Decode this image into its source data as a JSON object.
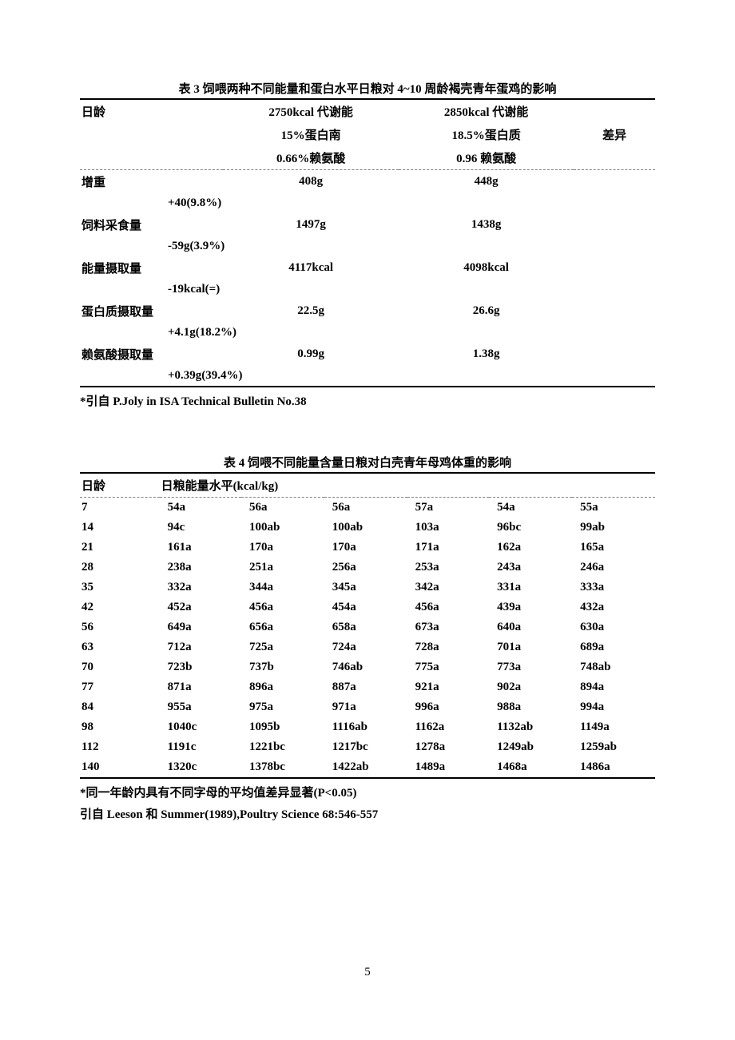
{
  "table3": {
    "caption": "表 3  饲喂两种不同能量和蛋白水平日粮对 4~10 周龄褐壳青年蛋鸡的影响",
    "hdr_age": "日龄",
    "hdr_diff": "差异",
    "diet1_l1": "2750kcal 代谢能",
    "diet1_l2": "15%蛋白南",
    "diet1_l3": "0.66%赖氨酸",
    "diet2_l1": "2850kcal 代谢能",
    "diet2_l2": "18.5%蛋白质",
    "diet2_l3": "0.96 赖氨酸",
    "rows": [
      {
        "label": "增重",
        "v1": "408g",
        "v2": "448g",
        "diff": "+40(9.8%)"
      },
      {
        "label": "饲料采食量",
        "v1": "1497g",
        "v2": "1438g",
        "diff": "-59g(3.9%)"
      },
      {
        "label": "能量摄取量",
        "v1": "4117kcal",
        "v2": "4098kcal",
        "diff": "-19kcal(=)"
      },
      {
        "label": "蛋白质摄取量",
        "v1": "22.5g",
        "v2": "26.6g",
        "diff": "+4.1g(18.2%)"
      },
      {
        "label": "赖氨酸摄取量",
        "v1": "0.99g",
        "v2": "1.38g",
        "diff": "+0.39g(39.4%)"
      }
    ],
    "footnote": "*引自 P.Joly in ISA Technical Bulletin No.38"
  },
  "table4": {
    "caption": "表 4  饲喂不同能量含量日粮对白壳青年母鸡体重的影响",
    "hdr_age": "日龄",
    "hdr_group": "日粮能量水平(kcal/kg)",
    "rows": [
      {
        "age": "7",
        "v": [
          "54a",
          "56a",
          "56a",
          "57a",
          "54a",
          "55a"
        ]
      },
      {
        "age": "14",
        "v": [
          "94c",
          "100ab",
          "100ab",
          "103a",
          "96bc",
          "99ab"
        ]
      },
      {
        "age": "21",
        "v": [
          "161a",
          "170a",
          "170a",
          "171a",
          "162a",
          "165a"
        ]
      },
      {
        "age": "28",
        "v": [
          "238a",
          "251a",
          "256a",
          "253a",
          "243a",
          "246a"
        ]
      },
      {
        "age": "35",
        "v": [
          "332a",
          "344a",
          "345a",
          "342a",
          "331a",
          "333a"
        ]
      },
      {
        "age": "42",
        "v": [
          "452a",
          "456a",
          "454a",
          "456a",
          "439a",
          "432a"
        ]
      },
      {
        "age": "56",
        "v": [
          "649a",
          "656a",
          "658a",
          "673a",
          "640a",
          "630a"
        ]
      },
      {
        "age": "63",
        "v": [
          "712a",
          "725a",
          "724a",
          "728a",
          "701a",
          "689a"
        ]
      },
      {
        "age": "70",
        "v": [
          "723b",
          "737b",
          "746ab",
          "775a",
          "773a",
          "748ab"
        ]
      },
      {
        "age": "77",
        "v": [
          "871a",
          "896a",
          "887a",
          "921a",
          "902a",
          "894a"
        ]
      },
      {
        "age": "84",
        "v": [
          "955a",
          "975a",
          "971a",
          "996a",
          "988a",
          "994a"
        ]
      },
      {
        "age": "98",
        "v": [
          "1040c",
          "1095b",
          "1116ab",
          "1162a",
          "1132ab",
          "1149a"
        ]
      },
      {
        "age": "112",
        "v": [
          "1191c",
          "1221bc",
          "1217bc",
          "1278a",
          "1249ab",
          "1259ab"
        ]
      },
      {
        "age": "140",
        "v": [
          "1320c",
          "1378bc",
          "1422ab",
          "1489a",
          "1468a",
          "1486a"
        ]
      }
    ],
    "footnote1": "*同一年龄内具有不同字母的平均值差异显著(P<0.05)",
    "footnote2": "引自 Leeson 和 Summer(1989),Poultry Science 68:546-557"
  },
  "page_number": "5"
}
